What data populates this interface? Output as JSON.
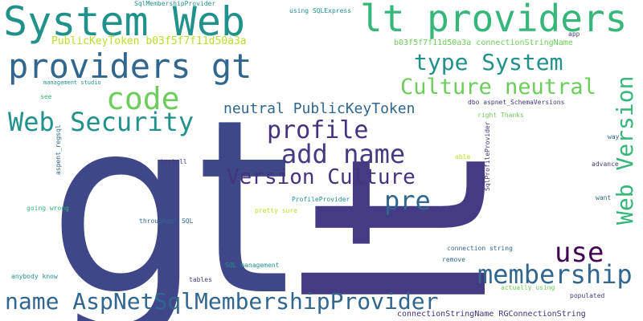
{
  "colors": {
    "navy": "#443b84",
    "indigo": "#3f4788",
    "purple": "#46327e",
    "blue": "#31668e",
    "teal": "#21918c",
    "green": "#35b779",
    "lime": "#6ccd5a",
    "yellow": "#b8de29",
    "deep": "#440154"
  },
  "words": {
    "gt": "gt",
    "lt": "lt",
    "system_web": "System Web",
    "lt_providers": "lt providers",
    "providers_gt": "providers gt",
    "code": "code",
    "web_security": "Web Security",
    "type_system": "type System",
    "culture_neutral": "Culture neutral",
    "profile": "profile",
    "neutral_publickeytoken": "neutral PublicKeyToken",
    "add_name": "add name",
    "version_culture": "Version Culture",
    "pre": "pre",
    "web_version": "Web Version",
    "use": "use",
    "membership": "membership",
    "name_aspnetsqlmembershipprovider": "name AspNetSqlMembershipProvider",
    "publickeytoken_hash": "PublicKeyToken b03f5f7f11d50a3a",
    "hash_connectionstringname": "b03f5f7f11d50a3a connectionStringName",
    "sqlmembershipprovider": "SqlMembershipProvider",
    "using_sqlexpress": "using SQLExpress",
    "app": "app",
    "management_studio": "management studio",
    "see": "see",
    "dbo_aspnet_schemaversions": "dbo aspnet_SchemaVersions",
    "right_thanks": "right Thanks",
    "aspent_regsql": "aspent_regsql",
    "install": "install",
    "able": "able",
    "sqlprofileprovider": "SqlProfileProvider",
    "way": "way",
    "advance": "advance",
    "want": "want",
    "profileprovider": "ProfileProvider",
    "going_wrong": "going wrong",
    "pretty_sure": "pretty sure",
    "throughout_sql": "throughout SQL",
    "connection_string": "connection string",
    "remove": "remove",
    "sql_management": "SQL management",
    "anybody_know": "anybody know",
    "tables": "tables",
    "actually_using": "actually using",
    "populated": "populated",
    "connectionstringname_rgconnectionstring": "connectionStringName RGConnectionString"
  }
}
